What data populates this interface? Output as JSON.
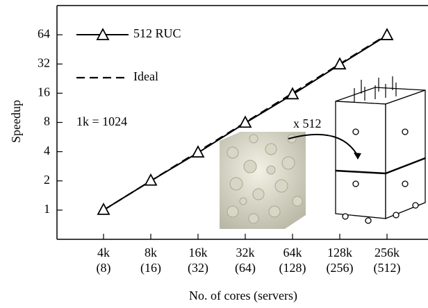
{
  "chart_data": {
    "type": "line",
    "x_label": "No. of cores (servers)",
    "y_label": "Speedup",
    "categories": [
      "4k",
      "8k",
      "16k",
      "32k",
      "64k",
      "128k",
      "256k"
    ],
    "category_sublabels": [
      "(8)",
      "(16)",
      "(32)",
      "(64)",
      "(128)",
      "(256)",
      "(512)"
    ],
    "series": [
      {
        "name": "512 RUC",
        "color": "#000000",
        "dash": false,
        "marker": "triangle",
        "values": [
          1,
          2,
          3.9,
          7.9,
          15.5,
          31.5,
          63
        ]
      },
      {
        "name": "Ideal",
        "color": "#000000",
        "dash": true,
        "marker": null,
        "values": [
          1,
          2,
          4,
          8,
          16,
          32,
          64
        ]
      }
    ],
    "log_scale_y": true,
    "ylim": [
      0.5,
      128
    ],
    "yticks": [
      1,
      2,
      4,
      8,
      16,
      32,
      64
    ],
    "grid": false,
    "legend": "upper left",
    "annotations": [
      "1k = 1024",
      "x 512"
    ]
  }
}
